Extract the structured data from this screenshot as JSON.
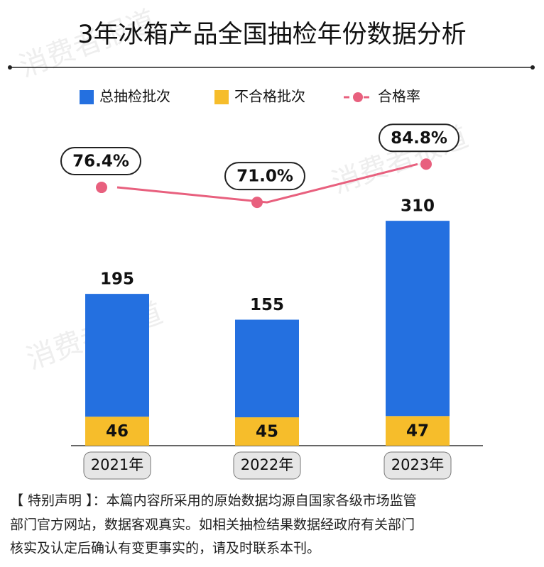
{
  "chart_data": {
    "type": "bar",
    "title": "3年冰箱产品全国抽检年份数据分析",
    "watermark": "消费者报道",
    "categories": [
      "2021年",
      "2022年",
      "2023年"
    ],
    "stacked": true,
    "series": [
      {
        "name": "总抽检批次",
        "color": "#2470e0",
        "values": [
          195,
          155,
          310
        ]
      },
      {
        "name": "不合格批次",
        "color": "#f6bd2b",
        "values": [
          46,
          45,
          47
        ]
      },
      {
        "name": "合格率",
        "color": "#e8607e",
        "type": "line",
        "axis": "y2",
        "values": [
          76.4,
          71.0,
          84.8
        ],
        "value_labels": [
          "76.4%",
          "71.0%",
          "84.8%"
        ]
      }
    ],
    "ylim": [
      0,
      400
    ],
    "y2lim": [
      60,
      90
    ],
    "note": [
      "【 特别声明 】：本篇内容所采用的原始数据均源自国家各级市场监管",
      "部门官方网站，数据客观真实。如相关抽检结果数据经政府有关部门",
      "核实及认定后确认有变更事实的，请及时联系本刊。"
    ]
  }
}
